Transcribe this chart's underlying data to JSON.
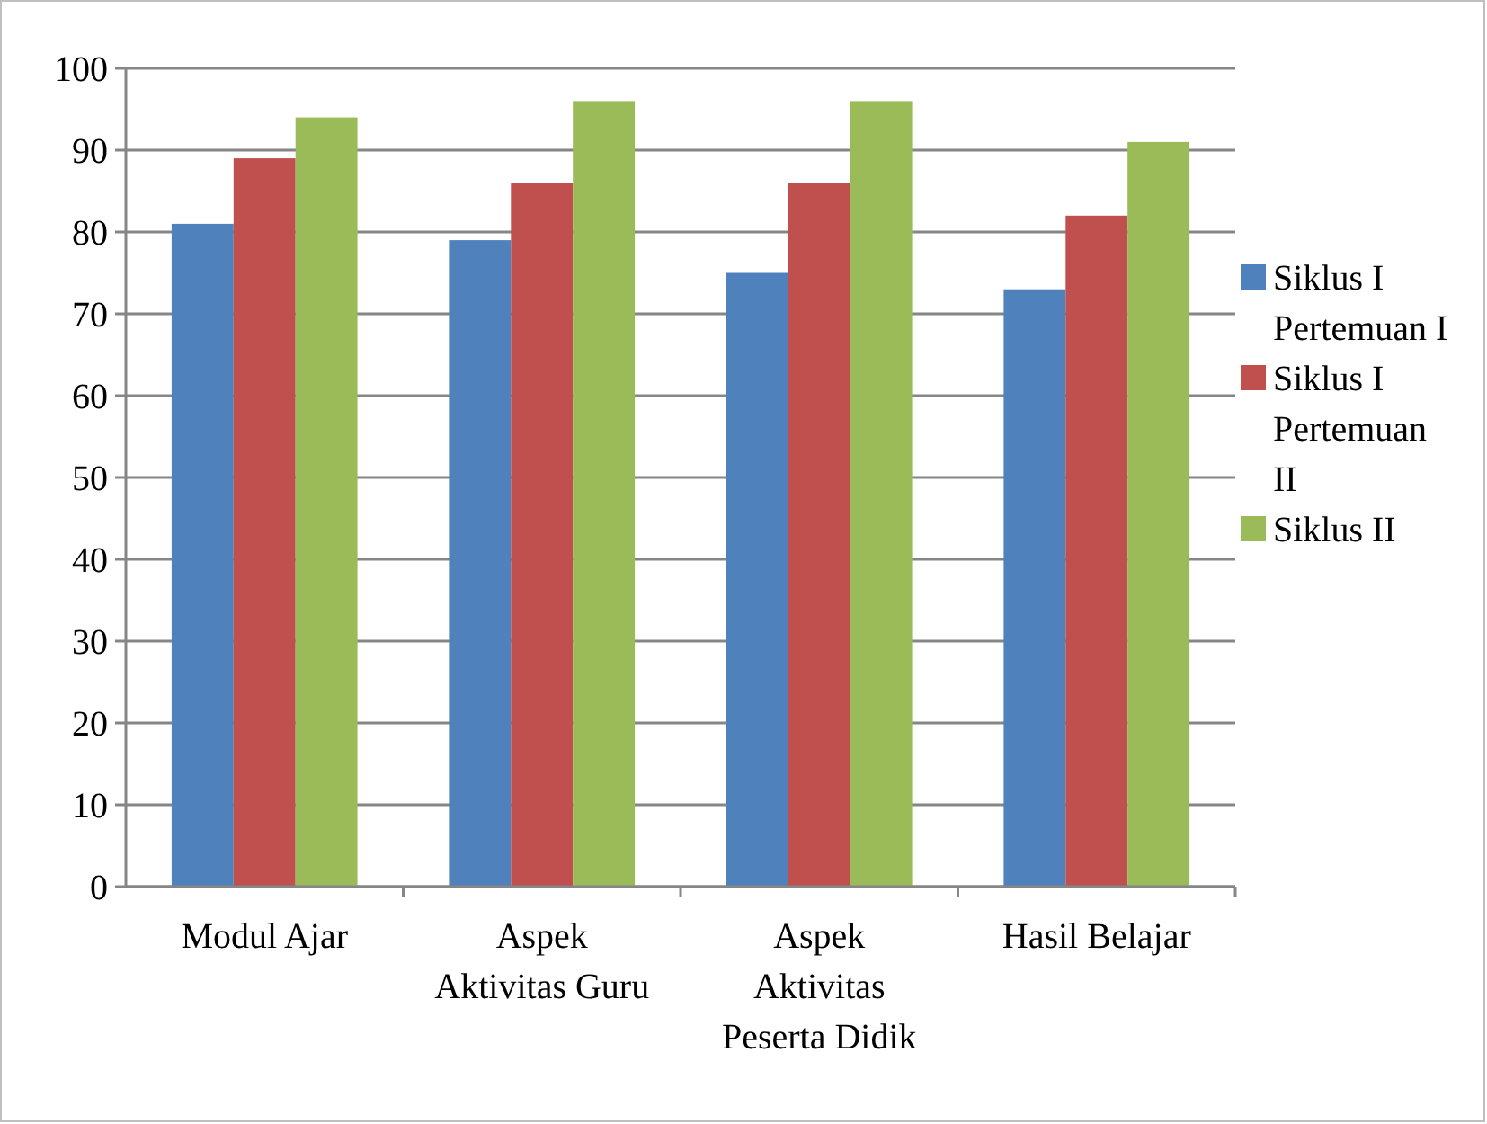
{
  "chart_data": {
    "type": "bar",
    "categories": [
      "Modul Ajar",
      "Aspek Aktivitas Guru",
      "Aspek Aktivitas Peserta Didik",
      "Hasil Belajar"
    ],
    "series": [
      {
        "name": "Siklus I Pertemuan I",
        "color": "#4f81bd",
        "values": [
          81,
          79,
          75,
          73
        ]
      },
      {
        "name": "Siklus I Pertemuan II",
        "color": "#c0504d",
        "values": [
          89,
          86,
          86,
          82
        ]
      },
      {
        "name": "Siklus II",
        "color": "#9bbb59",
        "values": [
          94,
          96,
          96,
          91
        ]
      }
    ],
    "ylim": [
      0,
      100
    ],
    "yticks": [
      0,
      10,
      20,
      30,
      40,
      50,
      60,
      70,
      80,
      90,
      100
    ],
    "grid": "y",
    "legend": "right"
  }
}
